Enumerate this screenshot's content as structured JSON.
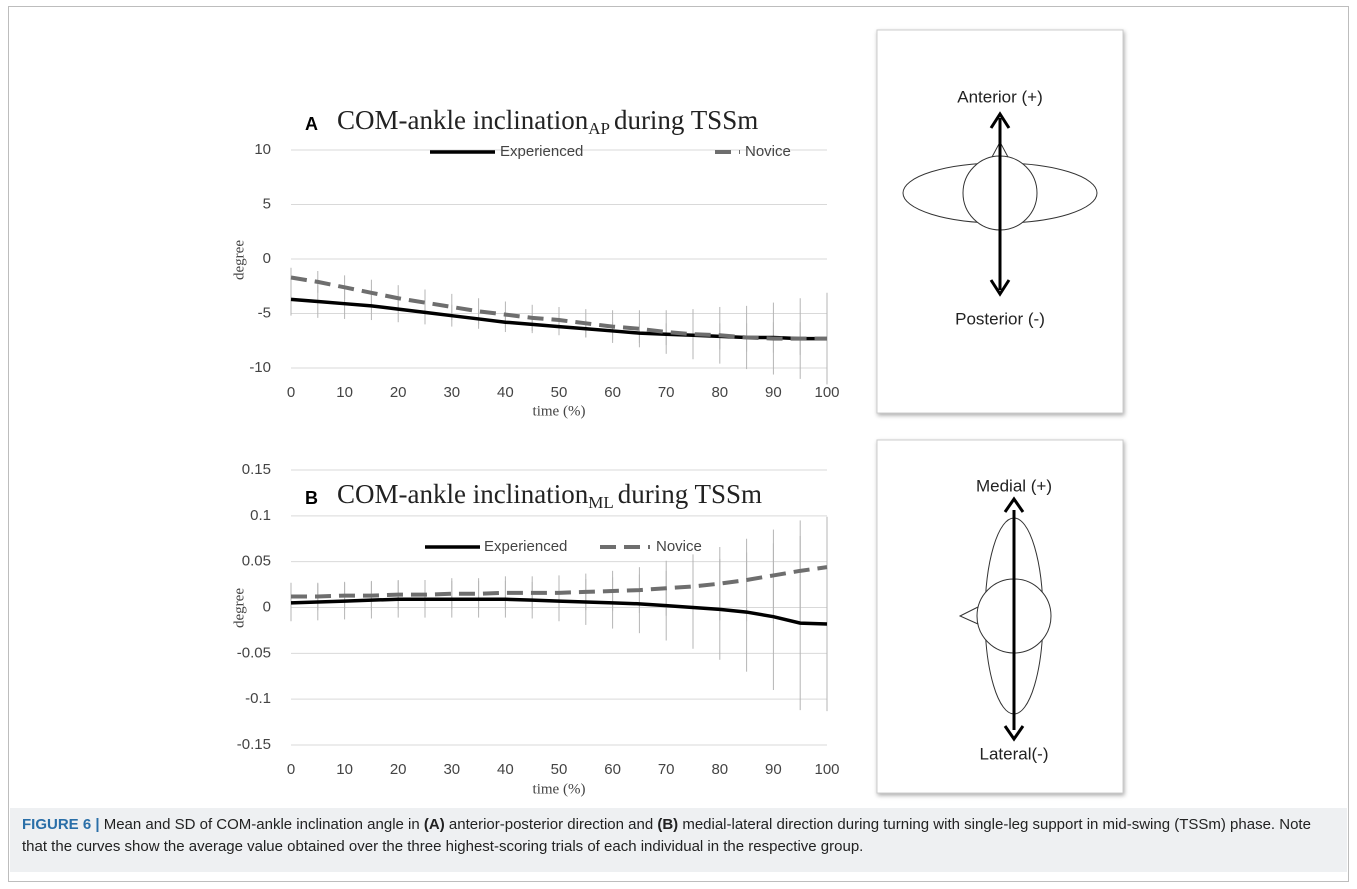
{
  "chart_data": [
    {
      "type": "line",
      "panel": "A",
      "title": "COM-ankle inclination",
      "title_subscript": "AP",
      "title_end": "during TSSm",
      "x_label": "time (%)",
      "y_label": "degree",
      "x": [
        0,
        5,
        10,
        15,
        20,
        25,
        30,
        35,
        40,
        45,
        50,
        55,
        60,
        65,
        70,
        75,
        80,
        85,
        90,
        95,
        100
      ],
      "series": [
        {
          "name": "Experienced",
          "color": "#000000",
          "dash": false,
          "values": [
            -3.7,
            -3.9,
            -4.1,
            -4.3,
            -4.6,
            -4.9,
            -5.2,
            -5.5,
            -5.8,
            -6.0,
            -6.2,
            -6.4,
            -6.6,
            -6.8,
            -6.9,
            -7.0,
            -7.1,
            -7.2,
            -7.2,
            -7.3,
            -7.3
          ],
          "sd": [
            1.5,
            1.5,
            1.4,
            1.3,
            1.2,
            1.1,
            1.0,
            0.9,
            0.9,
            0.8,
            0.8,
            0.8,
            0.8,
            0.9,
            1.0,
            1.1,
            1.2,
            1.3,
            1.4,
            1.5,
            1.5
          ]
        },
        {
          "name": "Novice",
          "color": "#6e6e6e",
          "dash": true,
          "values": [
            -1.7,
            -2.1,
            -2.6,
            -3.1,
            -3.6,
            -4.0,
            -4.4,
            -4.8,
            -5.1,
            -5.4,
            -5.6,
            -5.9,
            -6.2,
            -6.4,
            -6.7,
            -6.9,
            -7.0,
            -7.2,
            -7.3,
            -7.3,
            -7.3
          ],
          "sd": [
            0.9,
            1.0,
            1.1,
            1.2,
            1.2,
            1.2,
            1.2,
            1.2,
            1.2,
            1.2,
            1.2,
            1.3,
            1.5,
            1.7,
            2.0,
            2.3,
            2.6,
            2.9,
            3.3,
            3.7,
            4.2
          ]
        }
      ],
      "xlim": [
        0,
        100
      ],
      "xticks": [
        0,
        10,
        20,
        30,
        40,
        50,
        60,
        70,
        80,
        90,
        100
      ],
      "ylim": [
        -10,
        10
      ],
      "yticks": [
        -10,
        -5,
        0,
        5,
        10
      ],
      "grid": true
    },
    {
      "type": "line",
      "panel": "B",
      "title": "COM-ankle inclination",
      "title_subscript": "ML",
      "title_end": "during TSSm",
      "x_label": "time (%)",
      "y_label": "degree",
      "x": [
        0,
        5,
        10,
        15,
        20,
        25,
        30,
        35,
        40,
        45,
        50,
        55,
        60,
        65,
        70,
        75,
        80,
        85,
        90,
        95,
        100
      ],
      "series": [
        {
          "name": "Experienced",
          "color": "#000000",
          "dash": false,
          "values": [
            0.005,
            0.006,
            0.007,
            0.008,
            0.009,
            0.009,
            0.009,
            0.009,
            0.009,
            0.008,
            0.007,
            0.006,
            0.005,
            0.004,
            0.002,
            0.0,
            -0.002,
            -0.005,
            -0.01,
            -0.017,
            -0.018
          ],
          "sd": [
            0.02,
            0.02,
            0.02,
            0.02,
            0.02,
            0.02,
            0.02,
            0.02,
            0.02,
            0.02,
            0.022,
            0.025,
            0.028,
            0.032,
            0.038,
            0.045,
            0.055,
            0.065,
            0.08,
            0.095,
            0.095
          ]
        },
        {
          "name": "Novice",
          "color": "#6e6e6e",
          "dash": true,
          "values": [
            0.012,
            0.012,
            0.013,
            0.013,
            0.014,
            0.014,
            0.015,
            0.015,
            0.016,
            0.016,
            0.016,
            0.017,
            0.018,
            0.019,
            0.021,
            0.023,
            0.026,
            0.03,
            0.035,
            0.04,
            0.044
          ],
          "sd": [
            0.015,
            0.015,
            0.015,
            0.016,
            0.016,
            0.016,
            0.017,
            0.017,
            0.018,
            0.018,
            0.019,
            0.02,
            0.022,
            0.025,
            0.03,
            0.035,
            0.04,
            0.045,
            0.05,
            0.055,
            0.055
          ]
        }
      ],
      "xlim": [
        0,
        100
      ],
      "xticks": [
        0,
        10,
        20,
        30,
        40,
        50,
        60,
        70,
        80,
        90,
        100
      ],
      "ylim": [
        -0.15,
        0.15
      ],
      "yticks": [
        -0.15,
        -0.1,
        -0.05,
        0,
        0.05,
        0.1,
        0.15
      ],
      "grid": true
    }
  ],
  "diagrams": [
    {
      "top_label": "Anterior (+)",
      "bottom_label": "Posterior (-)"
    },
    {
      "top_label": "Medial (+)",
      "bottom_label": "Lateral(-)"
    }
  ],
  "caption": {
    "label": "FIGURE 6 |",
    "text_1": " Mean and SD of COM-ankle inclination angle in ",
    "ref_a": "(A)",
    "text_2": " anterior-posterior direction and ",
    "ref_b": "(B)",
    "text_3": " medial-lateral direction during turning with single-leg support in mid-swing (TSSm) phase. Note that the curves show the average value obtained over the three highest-scoring trials of each individual in the respective group."
  }
}
